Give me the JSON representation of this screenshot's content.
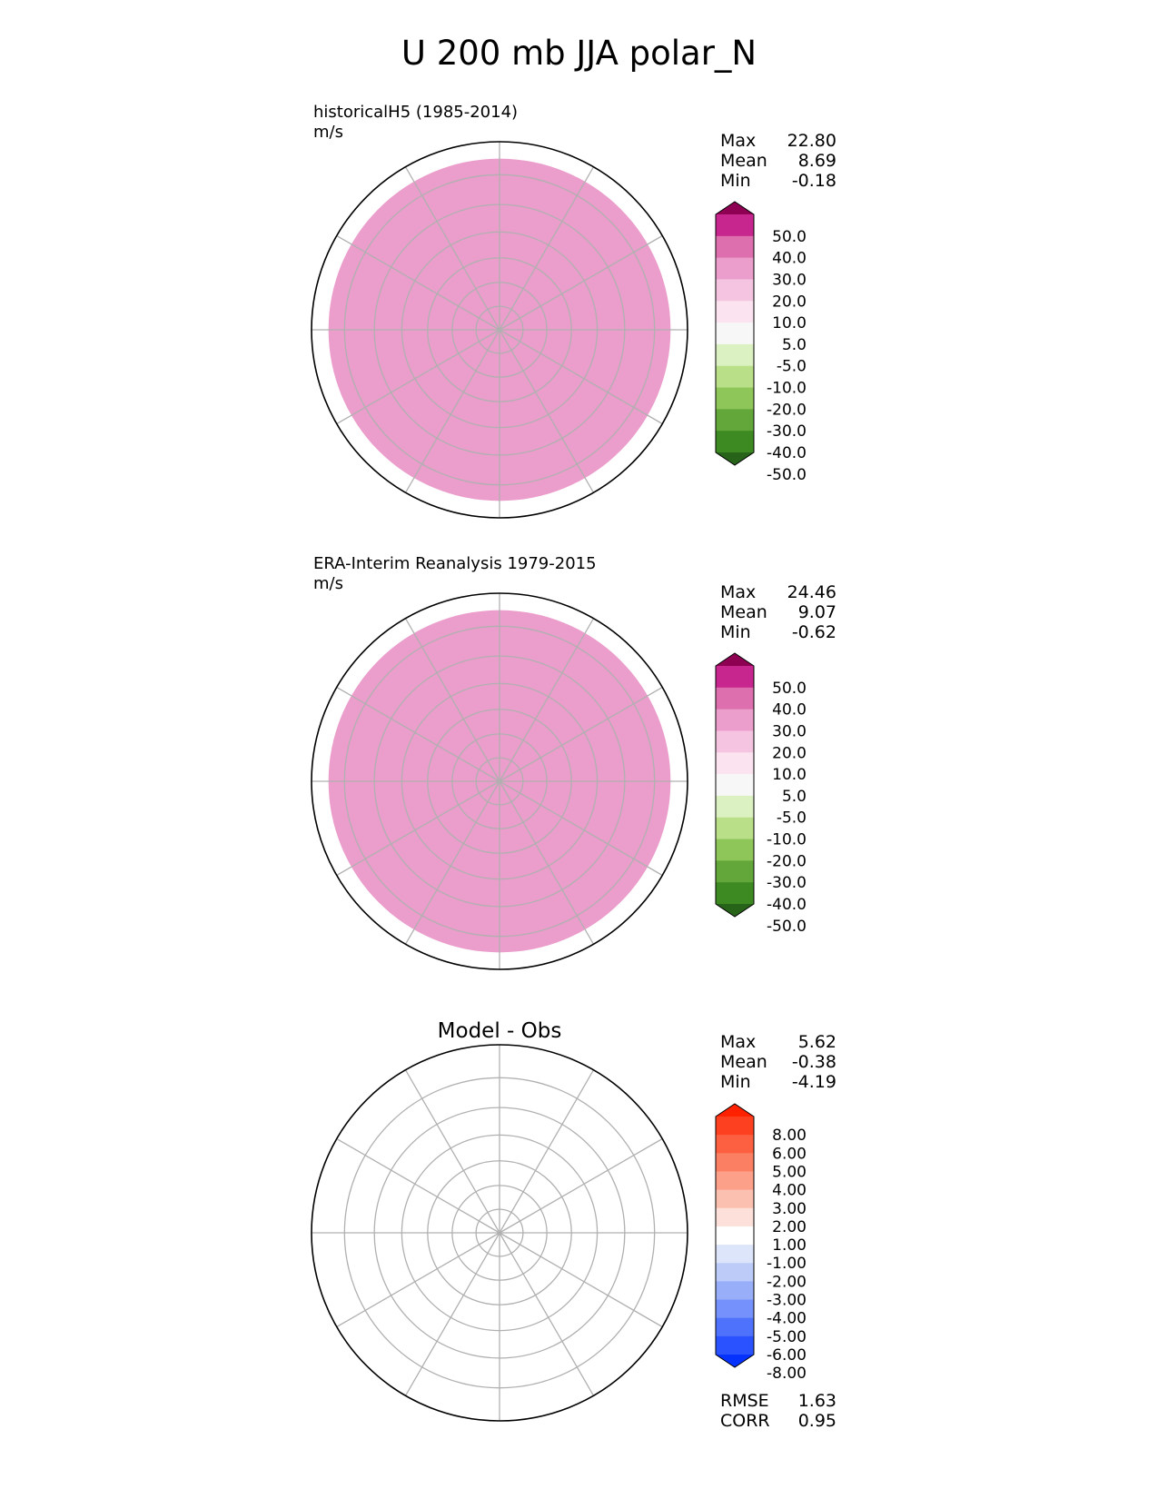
{
  "chart_data": [
    {
      "type": "heatmap",
      "suptitle": "U 200 mb JJA polar_N",
      "title": "historicalH5 (1985-2014)",
      "units": "m/s",
      "projection": "north-polar-stereographic",
      "stats": {
        "Max": "22.80",
        "Mean": "8.69",
        "Min": "-0.18"
      },
      "colorbar": {
        "levels": [
          "-50.0",
          "-40.0",
          "-30.0",
          "-20.0",
          "-10.0",
          "-5.0",
          "5.0",
          "10.0",
          "20.0",
          "30.0",
          "40.0",
          "50.0"
        ],
        "colors": [
          "#276419",
          "#3e8a22",
          "#63a73a",
          "#8fc659",
          "#b9e088",
          "#dcf1c1",
          "#f7f7f7",
          "#fbe4ef",
          "#f5c4e0",
          "#eb9dcb",
          "#de6fae",
          "#c6268d",
          "#8e0152"
        ],
        "extend": "both"
      },
      "field_zones": [
        {
          "lat": 90,
          "color": "#f7f7f7"
        },
        {
          "lat": 70,
          "color": "#fbe4ef"
        },
        {
          "lat": 45,
          "color": "#f5c4e0"
        },
        {
          "lat": 25,
          "color": "#eb9dcb"
        }
      ]
    },
    {
      "type": "heatmap",
      "title": "ERA-Interim Reanalysis 1979-2015",
      "units": "m/s",
      "projection": "north-polar-stereographic",
      "stats": {
        "Max": "24.46",
        "Mean": "9.07",
        "Min": "-0.62"
      },
      "colorbar": {
        "levels": [
          "-50.0",
          "-40.0",
          "-30.0",
          "-20.0",
          "-10.0",
          "-5.0",
          "5.0",
          "10.0",
          "20.0",
          "30.0",
          "40.0",
          "50.0"
        ],
        "colors": [
          "#276419",
          "#3e8a22",
          "#63a73a",
          "#8fc659",
          "#b9e088",
          "#dcf1c1",
          "#f7f7f7",
          "#fbe4ef",
          "#f5c4e0",
          "#eb9dcb",
          "#de6fae",
          "#c6268d",
          "#8e0152"
        ],
        "extend": "both"
      },
      "field_zones": [
        {
          "lat": 90,
          "color": "#f7f7f7"
        },
        {
          "lat": 75,
          "color": "#fbe4ef"
        },
        {
          "lat": 45,
          "color": "#f5c4e0"
        },
        {
          "lat": 25,
          "color": "#eb9dcb"
        }
      ]
    },
    {
      "type": "heatmap",
      "title": "Model - Obs",
      "projection": "north-polar-stereographic",
      "stats": {
        "Max": "5.62",
        "Mean": "-0.38",
        "Min": "-4.19"
      },
      "metrics": {
        "RMSE": "1.63",
        "CORR": "0.95"
      },
      "colorbar": {
        "levels": [
          "-8.00",
          "-6.00",
          "-5.00",
          "-4.00",
          "-3.00",
          "-2.00",
          "-1.00",
          "1.00",
          "2.00",
          "3.00",
          "4.00",
          "5.00",
          "6.00",
          "8.00"
        ],
        "colors": [
          "#0532ff",
          "#2a52fe",
          "#4f72fd",
          "#7491fc",
          "#98aef9",
          "#bccbf8",
          "#dde5fb",
          "#ffffff",
          "#fde0d9",
          "#fcc0b0",
          "#fca089",
          "#fb8063",
          "#fc6041",
          "#fd4120",
          "#ff2100"
        ],
        "extend": "both"
      },
      "field_zones": [
        {
          "lat": 90,
          "color": "#ffffff"
        },
        {
          "lat": 85,
          "color": "#dde5fb"
        },
        {
          "lat": 60,
          "color": "#ffffff"
        },
        {
          "lat": 45,
          "color": "#fde0d9"
        },
        {
          "lat": 32,
          "color": "#ffffff"
        }
      ]
    }
  ]
}
